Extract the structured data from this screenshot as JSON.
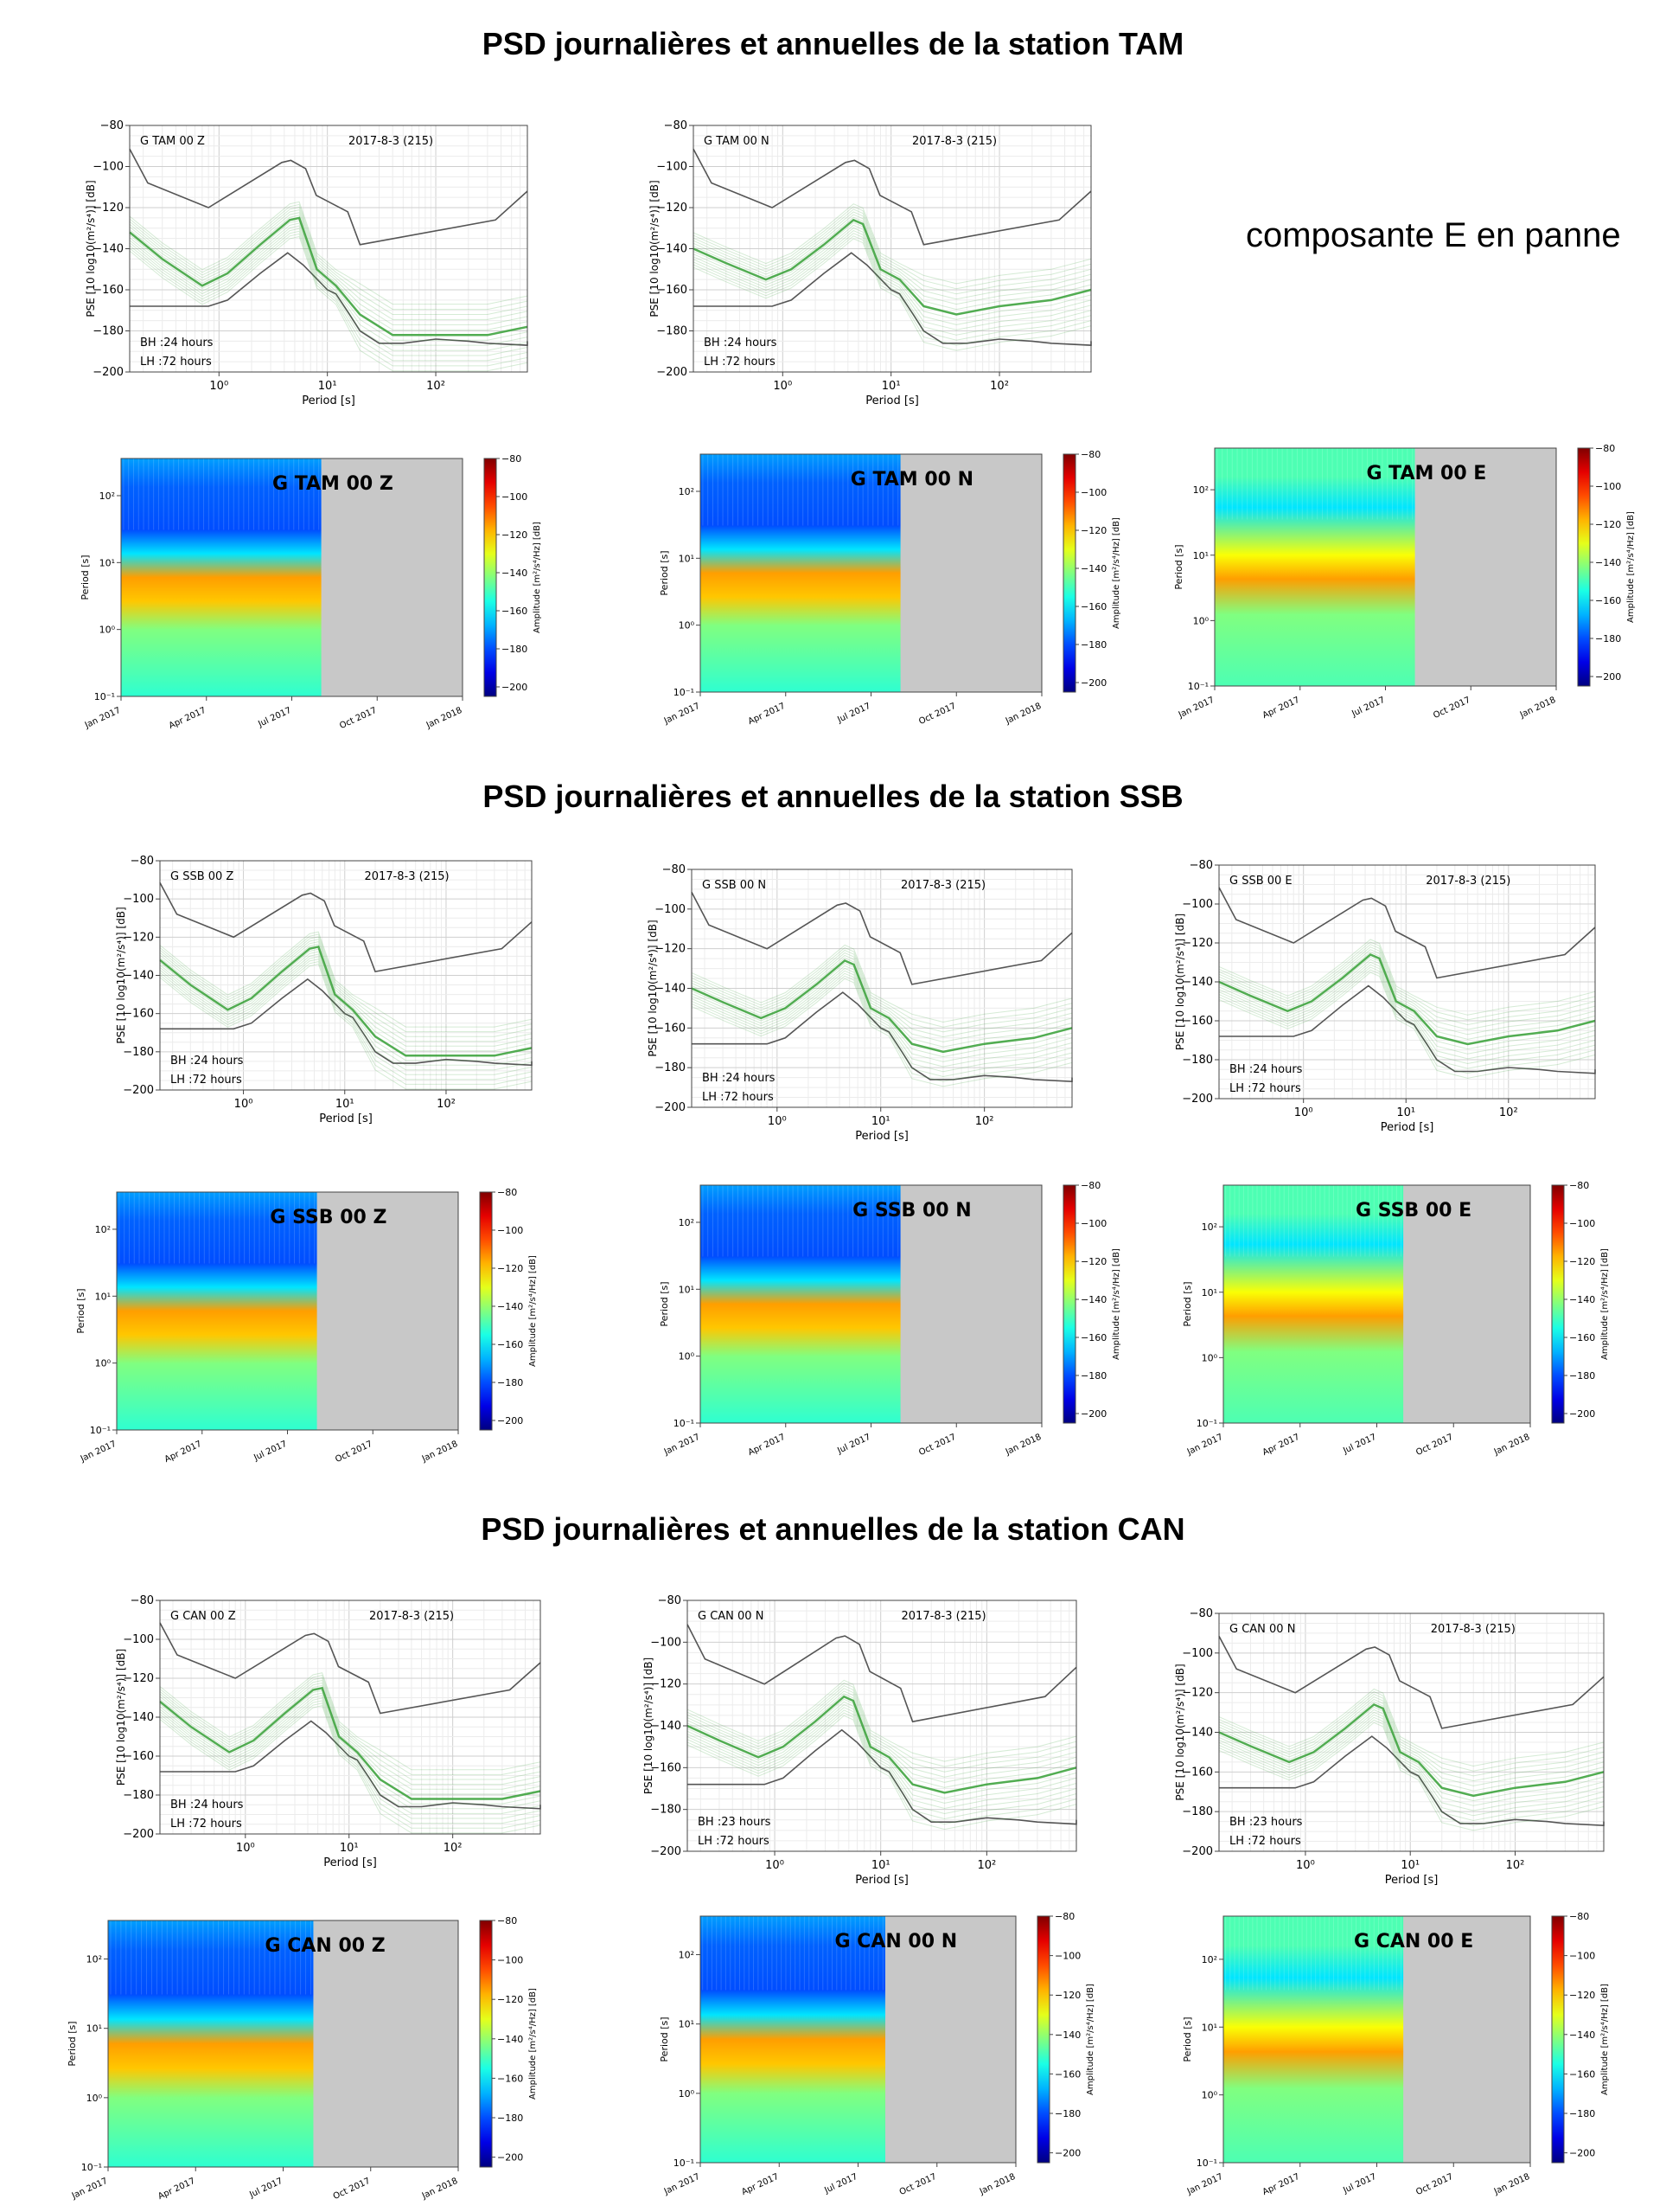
{
  "stations": [
    {
      "title": "PSD journalières et annuelles de la station TAM",
      "psd": [
        {
          "chan": "G TAM 00 Z",
          "date": "2017-8-3  (215)",
          "bh": "BH :24 hours",
          "lh": "LH :72 hours"
        },
        {
          "chan": "G TAM 00 N",
          "date": "2017-8-3  (215)",
          "bh": "BH :24 hours",
          "lh": "LH :72 hours"
        }
      ],
      "note": "composante E en panne",
      "spec": [
        "G TAM 00 Z",
        "G TAM 00 N",
        "G TAM 00 E"
      ]
    },
    {
      "title": "PSD journalières et annuelles de la station SSB",
      "psd": [
        {
          "chan": "G SSB 00 Z",
          "date": "2017-8-3  (215)",
          "bh": "BH :24 hours",
          "lh": "LH :72 hours"
        },
        {
          "chan": "G SSB 00 N",
          "date": "2017-8-3  (215)",
          "bh": "BH :24 hours",
          "lh": "LH :72 hours"
        },
        {
          "chan": "G SSB 00 E",
          "date": "2017-8-3  (215)",
          "bh": "BH :24 hours",
          "lh": "LH :72 hours"
        }
      ],
      "spec": [
        "G SSB 00 Z",
        "G SSB 00 N",
        "G SSB 00 E"
      ]
    },
    {
      "title": "PSD journalières et annuelles de la station CAN",
      "psd": [
        {
          "chan": "G CAN 00 Z",
          "date": "2017-8-3  (215)",
          "bh": "BH :24 hours",
          "lh": "LH :72 hours"
        },
        {
          "chan": "G CAN 00 N",
          "date": "2017-8-3  (215)",
          "bh": "BH :23 hours",
          "lh": "LH :72 hours"
        },
        {
          "chan": "G CAN 00 N",
          "date": "2017-8-3  (215)",
          "bh": "BH :23 hours",
          "lh": "LH :72 hours"
        }
      ],
      "spec": [
        "G CAN 00 Z",
        "G CAN 00 N",
        "G CAN 00 E"
      ]
    }
  ],
  "chart_data": [
    {
      "type": "line",
      "description_kind": "psd",
      "xlabel": "Period [s]",
      "ylabel": "PSE [10 log10(m²/s⁴)] [dB]",
      "x_scale": "log",
      "xlim": [
        0.15,
        700
      ],
      "ylim": [
        -200,
        -80
      ],
      "yticks": [
        -80,
        -100,
        -120,
        -140,
        -160,
        -180,
        -200
      ],
      "xticks": [
        "10⁰",
        "10¹",
        "10²"
      ],
      "nhnm": {
        "x": [
          0.1,
          0.22,
          0.8,
          3.8,
          4.6,
          6.3,
          7.9,
          15.4,
          20,
          354.8,
          1000
        ],
        "y": [
          -91.5,
          -108,
          -120,
          -98,
          -97,
          -101,
          -114,
          -122,
          -138,
          -126,
          -112
        ]
      },
      "nlnm": {
        "x": [
          0.1,
          0.8,
          1.2,
          2.4,
          4.3,
          6,
          10,
          12,
          16,
          20,
          30,
          50,
          100,
          200,
          300,
          700,
          1000
        ],
        "y": [
          -168,
          -168,
          -165,
          -152,
          -142,
          -148,
          -160,
          -162,
          -172,
          -180,
          -186,
          -186,
          -184,
          -185,
          -186,
          -187,
          -185
        ]
      },
      "grid": true,
      "series_color": "#3fa43f"
    },
    {
      "type": "heatmap",
      "description_kind": "spectrogram",
      "ylabel": "Period [s]",
      "y_scale": "log",
      "yticks": [
        "10⁻¹",
        "10⁰",
        "10¹",
        "10²"
      ],
      "xticks": [
        "Jan 2017",
        "Apr 2017",
        "Jul 2017",
        "Oct 2017",
        "Jan 2018"
      ],
      "data_until": "2017-08-03",
      "colorbar_label": "Amplitude [m²/s⁴/Hz] [dB]",
      "colorbar_range": [
        -205,
        -80
      ],
      "colorbar_ticks": [
        -80,
        -100,
        -120,
        -140,
        -160,
        -180,
        -200
      ],
      "colormap": "jet",
      "nodata_color": "#c8c8c8"
    }
  ]
}
